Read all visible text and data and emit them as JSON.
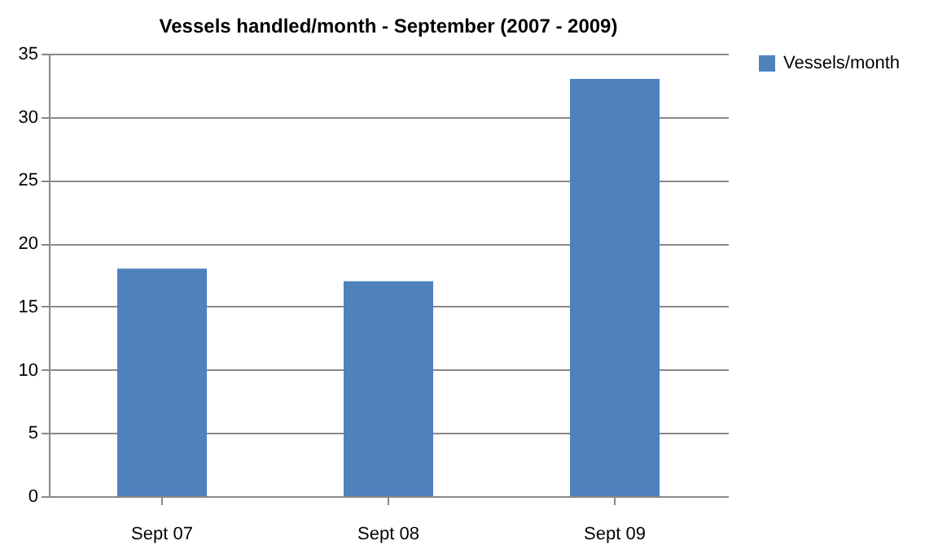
{
  "chart_data": {
    "type": "bar",
    "title": "Vessels handled/month - September (2007 - 2009)",
    "categories": [
      "Sept 07",
      "Sept 08",
      "Sept 09"
    ],
    "series": [
      {
        "name": "Vessels/month",
        "color": "#4f81bd",
        "values": [
          18,
          17,
          33
        ]
      }
    ],
    "ylim": [
      0,
      35
    ],
    "yticks": [
      0,
      5,
      10,
      15,
      20,
      25,
      30,
      35
    ],
    "grid": "y",
    "legend": "right"
  }
}
